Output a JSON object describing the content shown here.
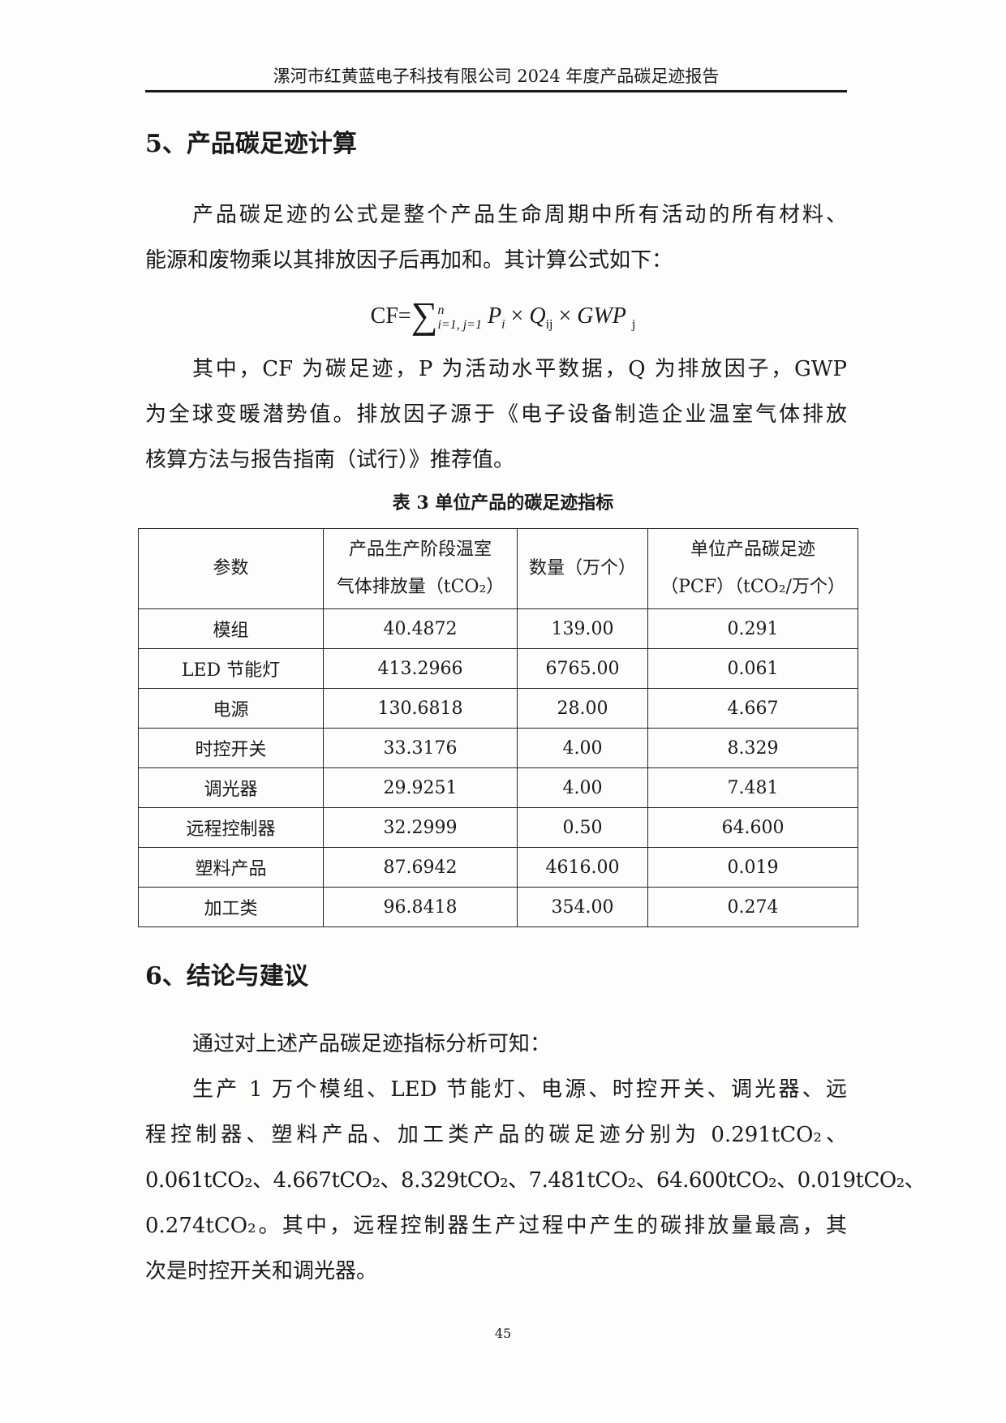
{
  "header": {
    "title": "漯河市红黄蓝电子科技有限公司 2024 年度产品碳足迹报告"
  },
  "section5": {
    "heading": "5、产品碳足迹计算",
    "intro_lines": [
      "产品碳足迹的公式是整个产品生命周期中所有活动的所有材料、",
      "能源和废物乘以其排放因子后再加和。其计算公式如下："
    ],
    "formula": {
      "lhs": "CF=",
      "sum": "∑",
      "upper": "n",
      "lower": "i=1, j=1",
      "p": "P",
      "p_sub": "i",
      "times": "×",
      "q": "Q",
      "q_sub": "ij",
      "gwp": "GWP",
      "gwp_sub": "j"
    },
    "explain_lines": [
      "其中，CF 为碳足迹，P 为活动水平数据，Q 为排放因子，GWP",
      "为全球变暖潜势值。排放因子源于《电子设备制造企业温室气体排放",
      "核算方法与报告指南（试行）》推荐值。"
    ],
    "table_caption": "表 3  单位产品的碳足迹指标",
    "table": {
      "headers": [
        {
          "l1": "参数",
          "l2": ""
        },
        {
          "l1": "产品生产阶段温室",
          "l2": "气体排放量（tCO₂）"
        },
        {
          "l1": "数量（万个）",
          "l2": ""
        },
        {
          "l1": "单位产品碳足迹",
          "l2": "（PCF）（tCO₂/万个）"
        }
      ],
      "rows": [
        [
          "模组",
          "40.4872",
          "139.00",
          "0.291"
        ],
        [
          "LED 节能灯",
          "413.2966",
          "6765.00",
          "0.061"
        ],
        [
          "电源",
          "130.6818",
          "28.00",
          "4.667"
        ],
        [
          "时控开关",
          "33.3176",
          "4.00",
          "8.329"
        ],
        [
          "调光器",
          "29.9251",
          "4.00",
          "7.481"
        ],
        [
          "远程控制器",
          "32.2999",
          "0.50",
          "64.600"
        ],
        [
          "塑料产品",
          "87.6942",
          "4616.00",
          "0.019"
        ],
        [
          "加工类",
          "96.8418",
          "354.00",
          "0.274"
        ]
      ]
    }
  },
  "section6": {
    "heading": "6、结论与建议",
    "lines": [
      "通过对上述产品碳足迹指标分析可知：",
      "生产 1 万个模组、LED 节能灯、电源、时控开关、调光器、远",
      "程控制器、塑料产品、加工类产品的碳足迹分别为 0.291tCO₂、",
      "0.061tCO₂、4.667tCO₂、8.329tCO₂、7.481tCO₂、64.600tCO₂、0.019tCO₂、",
      "0.274tCO₂。其中，远程控制器生产过程中产生的碳排放量最高，其",
      "次是时控开关和调光器。"
    ]
  },
  "page_number": "45"
}
